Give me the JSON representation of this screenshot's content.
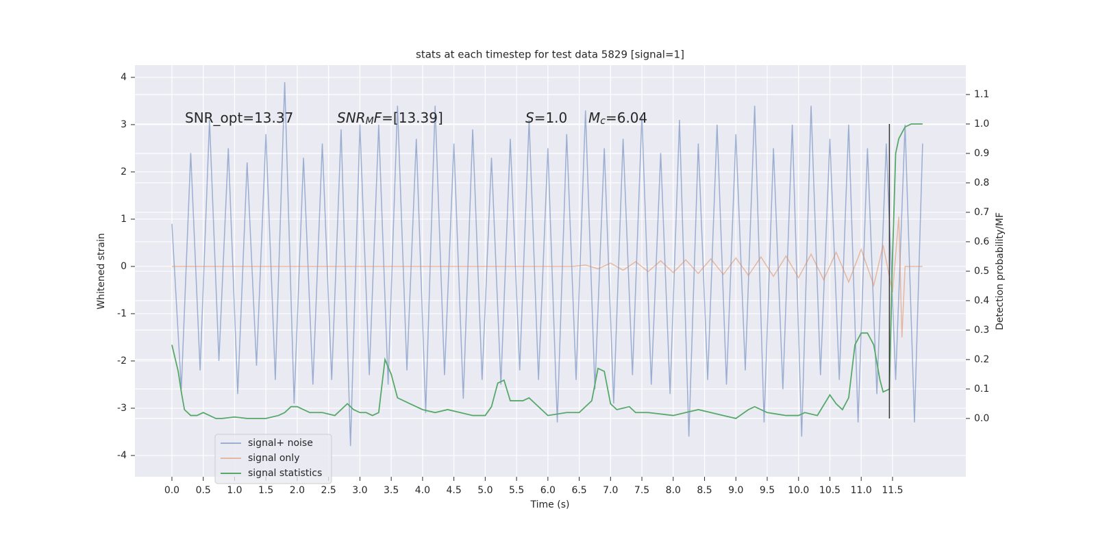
{
  "chart_data": {
    "type": "line",
    "title": "stats at each timestep for test data 5829 [signal=1]",
    "xlabel": "Time (s)",
    "ylabel": "Whitened strain",
    "y2label": "Detection probability/MF",
    "xlim": [
      -0.59,
      12.67
    ],
    "ylim": [
      -4.45,
      4.26
    ],
    "y2lim": [
      -0.198,
      1.2
    ],
    "grid": true,
    "legend": "lower left",
    "xticks": [
      {
        "value": 0,
        "label": "0.0"
      },
      0.5,
      {
        "value": 1,
        "label": "1.0"
      },
      1.5,
      {
        "value": 2,
        "label": "2.0"
      },
      2.5,
      {
        "value": 3,
        "label": "3.0"
      },
      3.5,
      {
        "value": 4,
        "label": "4.0"
      },
      4.5,
      {
        "value": 5,
        "label": "5.0"
      },
      5.5,
      {
        "value": 6,
        "label": "6.0"
      },
      6.5,
      {
        "value": 7,
        "label": "7.0"
      },
      7.5,
      {
        "value": 8,
        "label": "8.0"
      },
      8.5,
      {
        "value": 9,
        "label": "9.0"
      },
      9.5,
      {
        "value": 10,
        "label": "10.0"
      },
      10.5,
      {
        "value": 11,
        "label": "11.0"
      },
      11.5
    ],
    "yticks": [
      -4,
      -3,
      -2,
      -1,
      0,
      1,
      2,
      3,
      4
    ],
    "y2ticks": [
      {
        "value": 0,
        "label": "0.0"
      },
      0.1,
      0.2,
      0.3,
      0.4,
      0.5,
      0.6,
      0.7,
      0.8,
      0.9,
      {
        "value": 1,
        "label": "1.0"
      },
      1.1
    ],
    "annotations": [
      [
        {
          "text": "SNR_opt=13.37"
        }
      ],
      [
        {
          "text": "SNR",
          "italic": true
        },
        {
          "text": "M",
          "sub": true
        },
        {
          "text": "F",
          "italic": true
        },
        {
          "text": "=[13.39]"
        }
      ],
      [
        {
          "text": "S",
          "italic": true
        },
        {
          "text": "=1.0"
        }
      ],
      [
        {
          "text": "M",
          "italic": true
        },
        {
          "text": "c",
          "sub": true
        },
        {
          "text": "=6.04"
        }
      ]
    ],
    "vline": {
      "x": 11.45,
      "ymin": 0,
      "ymax": 1,
      "color": "#333333"
    },
    "series": [
      {
        "name": "signal+ noise",
        "color": "#4c72b0",
        "opacity": 0.5,
        "x": [
          0,
          0.15,
          0.3,
          0.45,
          0.6,
          0.75,
          0.9,
          1.05,
          1.2,
          1.35,
          1.5,
          1.65,
          1.8,
          1.95,
          2.1,
          2.25,
          2.4,
          2.55,
          2.7,
          2.85,
          3.0,
          3.15,
          3.3,
          3.45,
          3.6,
          3.75,
          3.9,
          4.05,
          4.2,
          4.35,
          4.5,
          4.65,
          4.8,
          4.95,
          5.1,
          5.25,
          5.4,
          5.55,
          5.7,
          5.85,
          6.0,
          6.15,
          6.3,
          6.45,
          6.6,
          6.75,
          6.9,
          7.05,
          7.2,
          7.35,
          7.5,
          7.65,
          7.8,
          7.95,
          8.1,
          8.25,
          8.4,
          8.55,
          8.7,
          8.85,
          9.0,
          9.15,
          9.3,
          9.45,
          9.6,
          9.75,
          9.9,
          10.05,
          10.2,
          10.35,
          10.5,
          10.65,
          10.8,
          10.95,
          11.1,
          11.25,
          11.4,
          11.55,
          11.7,
          11.85,
          11.98
        ],
        "values": [
          0.9,
          -2.6,
          2.4,
          -2.2,
          3.1,
          -2.0,
          2.5,
          -2.7,
          2.2,
          -2.1,
          2.8,
          -2.4,
          3.9,
          -2.9,
          2.3,
          -2.5,
          2.6,
          -2.4,
          2.9,
          -3.8,
          3.0,
          -2.3,
          3.0,
          -2.5,
          3.4,
          -2.2,
          2.7,
          -3.1,
          3.4,
          -2.3,
          2.6,
          -2.8,
          2.9,
          -2.4,
          2.3,
          -2.5,
          2.7,
          -2.2,
          3.1,
          -2.4,
          2.5,
          -3.3,
          2.8,
          -2.4,
          3.3,
          -2.6,
          2.5,
          -2.9,
          2.7,
          -2.3,
          3.2,
          -2.5,
          2.4,
          -2.7,
          3.1,
          -3.6,
          2.6,
          -2.4,
          3.0,
          -2.5,
          2.8,
          -2.2,
          3.4,
          -3.3,
          2.5,
          -2.6,
          3.0,
          -3.6,
          3.4,
          -2.3,
          2.7,
          -2.4,
          3.0,
          -3.3,
          2.5,
          -2.7,
          2.6,
          -2.4,
          3.0,
          -3.3,
          2.6
        ]
      },
      {
        "name": "signal only",
        "color": "#dd8452",
        "opacity": 0.5,
        "x": [
          0,
          6.4,
          6.6,
          6.8,
          7.0,
          7.2,
          7.4,
          7.6,
          7.8,
          8.0,
          8.2,
          8.4,
          8.6,
          8.8,
          9.0,
          9.2,
          9.4,
          9.6,
          9.8,
          10.0,
          10.2,
          10.4,
          10.6,
          10.8,
          11.0,
          11.2,
          11.35,
          11.5,
          11.6,
          11.65,
          11.7,
          11.98
        ],
        "values": [
          0,
          0,
          0.03,
          -0.05,
          0.07,
          -0.08,
          0.1,
          -0.11,
          0.12,
          -0.13,
          0.14,
          -0.15,
          0.16,
          -0.17,
          0.18,
          -0.19,
          0.2,
          -0.21,
          0.22,
          -0.24,
          0.26,
          -0.28,
          0.3,
          -0.33,
          0.36,
          -0.4,
          0.45,
          -0.55,
          1.05,
          -1.5,
          0,
          0
        ]
      },
      {
        "name": "signal statistics",
        "color": "#55a868",
        "opacity": 1,
        "axis": "y2",
        "x": [
          0,
          0.1,
          0.15,
          0.2,
          0.3,
          0.4,
          0.5,
          0.6,
          0.7,
          0.8,
          1.0,
          1.2,
          1.5,
          1.7,
          1.8,
          1.9,
          2.0,
          2.2,
          2.4,
          2.6,
          2.7,
          2.8,
          2.9,
          3.0,
          3.1,
          3.2,
          3.3,
          3.4,
          3.5,
          3.6,
          3.8,
          4.0,
          4.2,
          4.4,
          4.6,
          4.8,
          5.0,
          5.1,
          5.2,
          5.3,
          5.4,
          5.6,
          5.7,
          5.9,
          6.0,
          6.3,
          6.5,
          6.7,
          6.8,
          6.9,
          7.0,
          7.1,
          7.3,
          7.4,
          7.6,
          8.0,
          8.2,
          8.4,
          8.6,
          8.8,
          9.0,
          9.2,
          9.3,
          9.5,
          9.8,
          10.0,
          10.1,
          10.3,
          10.5,
          10.6,
          10.7,
          10.8,
          10.9,
          11.0,
          11.1,
          11.2,
          11.3,
          11.35,
          11.45,
          11.5,
          11.55,
          11.6,
          11.7,
          11.8,
          11.98
        ],
        "values": [
          0.25,
          0.16,
          0.09,
          0.03,
          0.01,
          0.01,
          0.02,
          0.01,
          0.0,
          0.0,
          0.005,
          0.0,
          0.0,
          0.01,
          0.02,
          0.04,
          0.04,
          0.02,
          0.02,
          0.01,
          0.03,
          0.05,
          0.03,
          0.02,
          0.02,
          0.01,
          0.02,
          0.2,
          0.15,
          0.07,
          0.05,
          0.03,
          0.02,
          0.03,
          0.02,
          0.01,
          0.01,
          0.04,
          0.12,
          0.13,
          0.06,
          0.06,
          0.07,
          0.03,
          0.01,
          0.02,
          0.02,
          0.06,
          0.17,
          0.16,
          0.05,
          0.03,
          0.04,
          0.02,
          0.02,
          0.01,
          0.02,
          0.03,
          0.02,
          0.01,
          0.0,
          0.03,
          0.04,
          0.02,
          0.01,
          0.01,
          0.02,
          0.01,
          0.08,
          0.05,
          0.03,
          0.07,
          0.25,
          0.29,
          0.29,
          0.25,
          0.13,
          0.09,
          0.1,
          0.55,
          0.9,
          0.95,
          0.99,
          1.0,
          1.0
        ]
      }
    ]
  }
}
